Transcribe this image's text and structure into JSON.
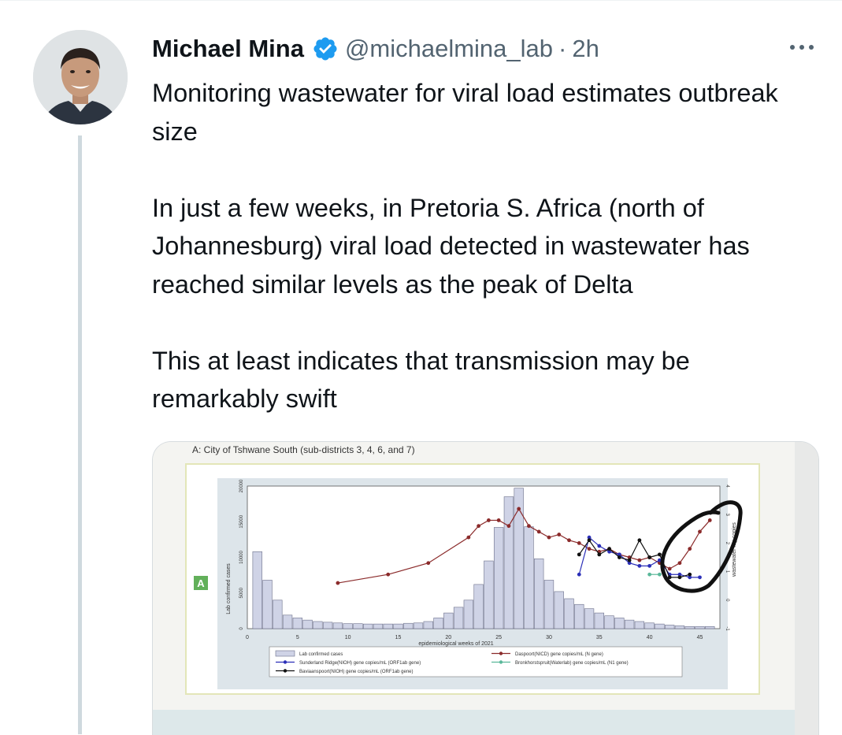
{
  "tweet": {
    "author_name": "Michael Mina",
    "handle": "@michaelmina_lab",
    "separator": "·",
    "time": "2h",
    "paragraphs": [
      "Monitoring wastewater for viral load estimates outbreak size",
      "In just a few weeks, in Pretoria S. Africa (north of Johannesburg) viral load detected in wastewater has reached similar levels as the peak of Delta",
      "This at least indicates that transmission may be remarkably swift"
    ]
  },
  "colors": {
    "verified": "#1d9bf0",
    "secondary_text": "#536471",
    "thread_line": "#cfd9de"
  },
  "icons": {
    "verified": "verified-badge-icon",
    "more": "more-options-icon"
  },
  "media": {
    "panel_title": "A: City of Tshwane  South (sub-districts 3, 4, 6, and 7)",
    "panel_tag": "A",
    "chart_data": {
      "type": "bar",
      "title": "",
      "xlabel": "epidemiological weeks of 2021",
      "ylabel": "Lab confirmed cases",
      "y2label": "wastewater log copies",
      "x_ticks": [
        "0",
        "5",
        "10",
        "15",
        "20",
        "25",
        "30",
        "35",
        "40",
        "45"
      ],
      "y_ticks": [
        "0",
        "5000",
        "10000",
        "15000",
        "20000"
      ],
      "y2_ticks": [
        "4",
        "3",
        "2",
        "1",
        "0",
        "-1"
      ],
      "xlim": [
        0,
        47
      ],
      "ylim": [
        0,
        20000
      ],
      "y2lim": [
        -1,
        4
      ],
      "bar_series": {
        "name": "Lab confirmed cases",
        "weeks": [
          1,
          2,
          3,
          4,
          5,
          6,
          7,
          8,
          9,
          10,
          11,
          12,
          13,
          14,
          15,
          16,
          17,
          18,
          19,
          20,
          21,
          22,
          23,
          24,
          25,
          26,
          27,
          28,
          29,
          30,
          31,
          32,
          33,
          34,
          35,
          36,
          37,
          38,
          39,
          40,
          41,
          42,
          43,
          44,
          45,
          46
        ],
        "values": [
          10800,
          6800,
          4000,
          1900,
          1500,
          1200,
          1000,
          900,
          800,
          700,
          700,
          650,
          650,
          650,
          650,
          750,
          800,
          1000,
          1500,
          2200,
          3000,
          4000,
          6200,
          9500,
          14200,
          18500,
          19700,
          14300,
          9800,
          6800,
          5200,
          4200,
          3400,
          2800,
          2200,
          1800,
          1500,
          1200,
          1000,
          800,
          650,
          500,
          400,
          300,
          300,
          300
        ]
      },
      "line_series": [
        {
          "name": "Daspoort(NICD) gene copies/mL (N gene)",
          "color": "#8b2b2b",
          "points": [
            [
              9,
              0.6
            ],
            [
              14,
              0.9
            ],
            [
              18,
              1.3
            ],
            [
              22,
              2.2
            ],
            [
              23,
              2.6
            ],
            [
              24,
              2.8
            ],
            [
              25,
              2.8
            ],
            [
              26,
              2.6
            ],
            [
              27,
              3.2
            ],
            [
              28,
              2.6
            ],
            [
              29,
              2.4
            ],
            [
              30,
              2.2
            ],
            [
              31,
              2.3
            ],
            [
              32,
              2.1
            ],
            [
              33,
              2.0
            ],
            [
              34,
              1.8
            ],
            [
              35,
              1.7
            ],
            [
              36,
              1.8
            ],
            [
              37,
              1.6
            ],
            [
              38,
              1.5
            ],
            [
              39,
              1.4
            ],
            [
              40,
              1.5
            ],
            [
              41,
              1.3
            ],
            [
              42,
              1.1
            ],
            [
              43,
              1.3
            ],
            [
              44,
              1.8
            ],
            [
              45,
              2.4
            ],
            [
              46,
              2.8
            ]
          ]
        },
        {
          "name": "Sunderland Ridge(NIOH) gene copies/mL (ORF1ab gene)",
          "color": "#2b2fb8",
          "points": [
            [
              33,
              0.9
            ],
            [
              34,
              2.2
            ],
            [
              35,
              1.9
            ],
            [
              36,
              1.7
            ],
            [
              37,
              1.6
            ],
            [
              38,
              1.3
            ],
            [
              39,
              1.2
            ],
            [
              40,
              1.2
            ],
            [
              41,
              1.4
            ],
            [
              42,
              0.9
            ],
            [
              43,
              0.9
            ],
            [
              44,
              0.8
            ],
            [
              45,
              0.8
            ]
          ]
        },
        {
          "name": "Baviaanspoort(NIOH) gene copies/mL (ORF1ab gene)",
          "color": "#111111",
          "points": [
            [
              33,
              1.6
            ],
            [
              34,
              2.1
            ],
            [
              35,
              1.6
            ],
            [
              36,
              1.8
            ],
            [
              37,
              1.5
            ],
            [
              38,
              1.4
            ],
            [
              39,
              2.1
            ],
            [
              40,
              1.5
            ],
            [
              41,
              1.6
            ],
            [
              42,
              0.8
            ],
            [
              43,
              0.8
            ],
            [
              44,
              0.9
            ]
          ]
        },
        {
          "name": "Bronkhorstspruit(Waterlab) gene copies/mL (N1 gene)",
          "color": "#5ab89a",
          "points": [
            [
              40,
              0.9
            ],
            [
              41,
              0.9
            ]
          ]
        }
      ],
      "legend": [
        {
          "label": "Lab confirmed cases",
          "kind": "bar"
        },
        {
          "label": "Sunderland Ridge(NIOH) gene copies/mL (ORF1ab gene)",
          "kind": "line",
          "color": "#2b2fb8"
        },
        {
          "label": "Baviaanspoort(NIOH) gene copies/mL (ORF1ab gene)",
          "kind": "line",
          "color": "#111111"
        },
        {
          "label": "Daspoort(NICD) gene copies/mL (N gene)",
          "kind": "line",
          "color": "#8b2b2b"
        },
        {
          "label": "Bronkhorstspruit(Waterlab) gene copies/mL (N1 gene)",
          "kind": "line",
          "color": "#5ab89a"
        }
      ],
      "legend_position": "bottom"
    }
  }
}
